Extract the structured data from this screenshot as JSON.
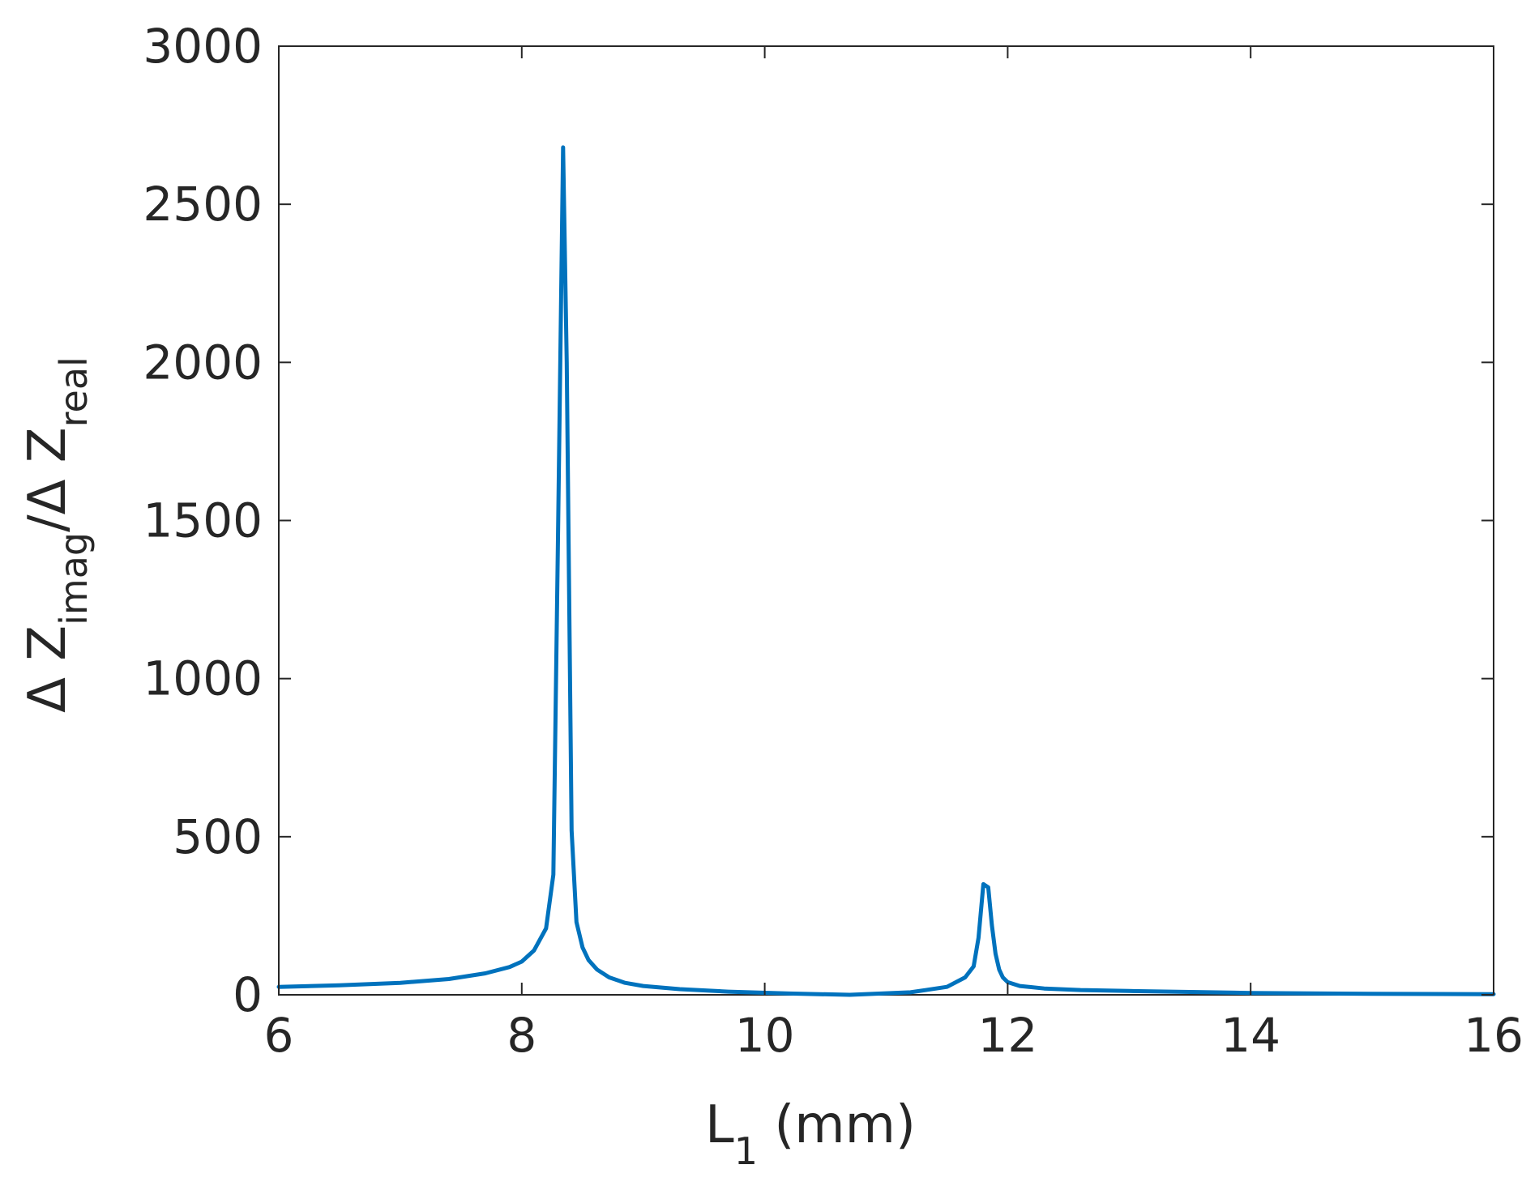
{
  "chart_data": {
    "type": "line",
    "title": "",
    "xlabel": {
      "main": "L",
      "sub": "1",
      "suffix": " (mm)"
    },
    "ylabel": {
      "prefix": "Δ Z",
      "sub1": "imag",
      "mid": "/Δ Z",
      "sub2": "real"
    },
    "xlim": [
      6,
      16
    ],
    "ylim": [
      0,
      3000
    ],
    "xticks": [
      6,
      8,
      10,
      12,
      14,
      16
    ],
    "yticks": [
      0,
      500,
      1000,
      1500,
      2000,
      2500,
      3000
    ],
    "x_tick_labels": [
      "6",
      "8",
      "10",
      "12",
      "14",
      "16"
    ],
    "y_tick_labels": [
      "0",
      "500",
      "1000",
      "1500",
      "2000",
      "2500",
      "3000"
    ],
    "grid": false,
    "box": true,
    "series": [
      {
        "color": "#0072bd",
        "x": [
          6.0,
          6.5,
          7.0,
          7.4,
          7.7,
          7.9,
          8.0,
          8.1,
          8.2,
          8.26,
          8.3,
          8.34,
          8.37,
          8.41,
          8.45,
          8.5,
          8.55,
          8.62,
          8.72,
          8.85,
          9.0,
          9.3,
          9.7,
          10.2,
          10.7,
          11.2,
          11.5,
          11.65,
          11.72,
          11.76,
          11.8,
          11.84,
          11.87,
          11.9,
          11.93,
          11.96,
          12.0,
          12.1,
          12.3,
          12.6,
          13.0,
          14.0,
          15.0,
          16.0
        ],
        "y": [
          25,
          30,
          38,
          50,
          68,
          88,
          105,
          140,
          210,
          380,
          1500,
          2680,
          2000,
          520,
          230,
          150,
          110,
          80,
          55,
          38,
          28,
          18,
          10,
          4,
          0,
          8,
          25,
          55,
          90,
          180,
          350,
          340,
          220,
          130,
          80,
          55,
          40,
          28,
          20,
          15,
          12,
          6,
          3,
          2
        ]
      }
    ]
  }
}
